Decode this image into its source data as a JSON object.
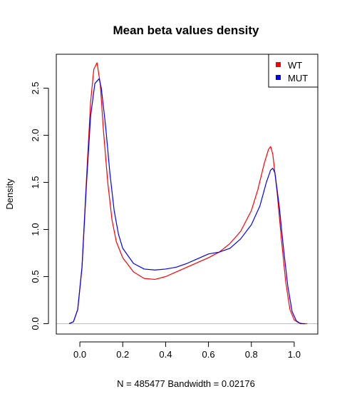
{
  "chart_data": {
    "type": "line",
    "title": "Mean beta values density",
    "xlabel": "N = 485477   Bandwidth = 0.02176",
    "ylabel": "Density",
    "xlim": [
      -0.11,
      1.11
    ],
    "ylim": [
      -0.11,
      2.86
    ],
    "x_ticks": [
      0.0,
      0.2,
      0.4,
      0.6,
      0.8,
      1.0
    ],
    "x_tick_labels": [
      "0.0",
      "0.2",
      "0.4",
      "0.6",
      "0.8",
      "1.0"
    ],
    "y_ticks": [
      0.0,
      0.5,
      1.0,
      1.5,
      2.0,
      2.5
    ],
    "y_tick_labels": [
      "0.0",
      "0.5",
      "1.0",
      "1.5",
      "2.0",
      "2.5"
    ],
    "baseline": 0,
    "baseline_color": "#bebebe",
    "legend": {
      "position": "top-right"
    },
    "series": [
      {
        "name": "WT",
        "color": "#ff0000",
        "x": [
          -0.05,
          -0.03,
          -0.01,
          0.01,
          0.03,
          0.05,
          0.065,
          0.08,
          0.095,
          0.11,
          0.13,
          0.15,
          0.17,
          0.2,
          0.25,
          0.3,
          0.35,
          0.4,
          0.45,
          0.5,
          0.55,
          0.6,
          0.65,
          0.7,
          0.75,
          0.8,
          0.83,
          0.86,
          0.88,
          0.89,
          0.9,
          0.92,
          0.94,
          0.96,
          0.98,
          1.0,
          1.02,
          1.04,
          1.06
        ],
        "y": [
          0.0,
          0.02,
          0.15,
          0.6,
          1.5,
          2.35,
          2.7,
          2.77,
          2.55,
          2.05,
          1.5,
          1.1,
          0.87,
          0.7,
          0.55,
          0.48,
          0.47,
          0.5,
          0.55,
          0.6,
          0.65,
          0.7,
          0.76,
          0.85,
          0.98,
          1.2,
          1.42,
          1.7,
          1.85,
          1.88,
          1.8,
          1.4,
          0.9,
          0.45,
          0.15,
          0.04,
          0.01,
          0.0,
          0.0
        ]
      },
      {
        "name": "MUT",
        "color": "#0000ff",
        "x": [
          -0.05,
          -0.03,
          -0.01,
          0.01,
          0.03,
          0.05,
          0.07,
          0.09,
          0.1,
          0.12,
          0.14,
          0.16,
          0.18,
          0.2,
          0.25,
          0.3,
          0.35,
          0.4,
          0.45,
          0.5,
          0.55,
          0.6,
          0.65,
          0.7,
          0.75,
          0.8,
          0.84,
          0.87,
          0.89,
          0.9,
          0.91,
          0.93,
          0.95,
          0.97,
          0.99,
          1.01,
          1.03,
          1.05
        ],
        "y": [
          0.0,
          0.02,
          0.15,
          0.6,
          1.45,
          2.2,
          2.55,
          2.6,
          2.5,
          2.1,
          1.6,
          1.2,
          0.95,
          0.8,
          0.64,
          0.58,
          0.57,
          0.58,
          0.6,
          0.64,
          0.69,
          0.74,
          0.76,
          0.8,
          0.9,
          1.05,
          1.25,
          1.5,
          1.63,
          1.65,
          1.6,
          1.25,
          0.8,
          0.4,
          0.13,
          0.03,
          0.0,
          0.0
        ]
      }
    ]
  }
}
